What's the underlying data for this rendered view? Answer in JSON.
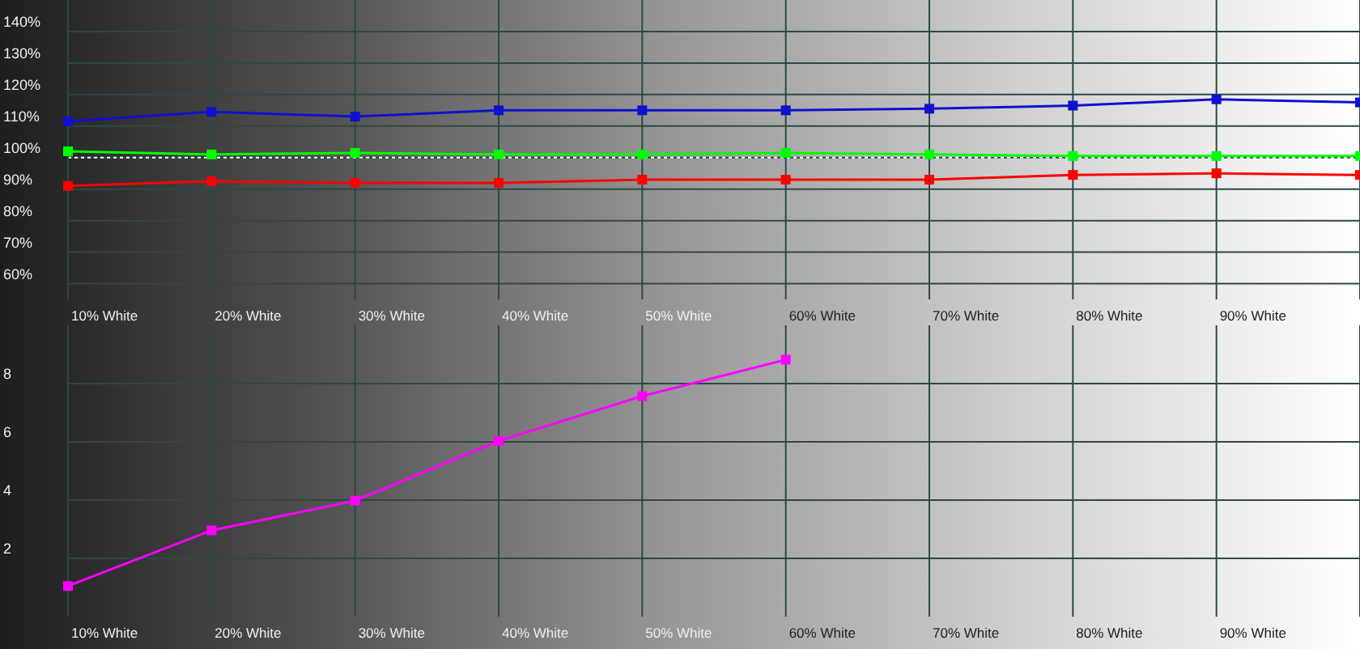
{
  "chart_data": [
    {
      "type": "line",
      "categories": [
        "10% White",
        "20% White",
        "30% White",
        "40% White",
        "50% White",
        "60% White",
        "70% White",
        "80% White",
        "90% White",
        null
      ],
      "series": [
        {
          "color": "#1010d0",
          "values": [
            111.5,
            114.5,
            113,
            115,
            115,
            115,
            115.5,
            116.5,
            118.5,
            117.5
          ]
        },
        {
          "color": "#00ff00",
          "values": [
            102,
            101,
            101.5,
            101,
            101,
            101.5,
            101,
            100.5,
            100.5,
            100.5
          ]
        },
        {
          "color": "#ff0000",
          "values": [
            91,
            92.5,
            92,
            92,
            93,
            93,
            93,
            94.5,
            95,
            94.5
          ]
        }
      ],
      "ylim": [
        55,
        150
      ],
      "yticks": [
        {
          "value": 60,
          "label": "60%"
        },
        {
          "value": 70,
          "label": "70%"
        },
        {
          "value": 80,
          "label": "80%"
        },
        {
          "value": 90,
          "label": "90%"
        },
        {
          "value": 100,
          "label": "100%"
        },
        {
          "value": 110,
          "label": "110%"
        },
        {
          "value": 120,
          "label": "120%"
        },
        {
          "value": 130,
          "label": "130%"
        },
        {
          "value": 140,
          "label": "140%"
        }
      ],
      "ref_lines": [
        {
          "axis": "y",
          "value": 100,
          "color": "#ffffff",
          "line_style": "dotted"
        }
      ],
      "grid": true,
      "marker": "square"
    },
    {
      "type": "line",
      "categories": [
        "10% White",
        "20% White",
        "30% White",
        "40% White",
        "50% White",
        "60% White",
        "70% White",
        "80% White",
        "90% White",
        null
      ],
      "series": [
        {
          "color": "#ff00ff",
          "values": [
            1.05,
            2.96,
            3.98,
            6.03,
            7.57,
            8.82,
            null,
            null,
            null,
            null
          ]
        }
      ],
      "ylim": [
        0,
        10
      ],
      "yticks": [
        2,
        4,
        6,
        8
      ],
      "grid": true,
      "marker": "square"
    }
  ]
}
